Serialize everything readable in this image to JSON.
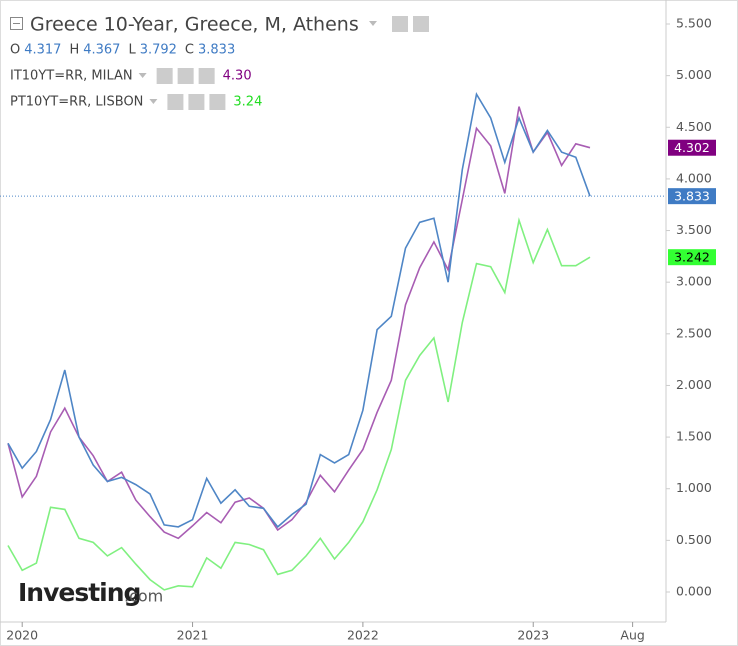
{
  "chart_data": {
    "type": "line",
    "ohlc": [
      {
        "name": "O",
        "value": "4.317"
      },
      {
        "name": "H",
        "value": "4.367"
      },
      {
        "name": "L",
        "value": "3.792"
      },
      {
        "name": "C",
        "value": "3.833"
      }
    ],
    "watermark": {
      "brand": "Investing",
      "suffix": ".com"
    },
    "x": [
      "2019-12",
      "2020-01",
      "2020-02",
      "2020-03",
      "2020-04",
      "2020-05",
      "2020-06",
      "2020-07",
      "2020-08",
      "2020-09",
      "2020-10",
      "2020-11",
      "2020-12",
      "2021-01",
      "2021-02",
      "2021-03",
      "2021-04",
      "2021-05",
      "2021-06",
      "2021-07",
      "2021-08",
      "2021-09",
      "2021-10",
      "2021-11",
      "2021-12",
      "2022-01",
      "2022-02",
      "2022-03",
      "2022-04",
      "2022-05",
      "2022-06",
      "2022-07",
      "2022-08",
      "2022-09",
      "2022-10",
      "2022-11",
      "2022-12",
      "2023-01",
      "2023-02",
      "2023-03",
      "2023-04",
      "2023-05"
    ],
    "xlim": [
      "2019-12",
      "2023-10"
    ],
    "xticks": [
      {
        "value": "2020-01",
        "label": "2020"
      },
      {
        "value": "2021-01",
        "label": "2021"
      },
      {
        "value": "2022-01",
        "label": "2022"
      },
      {
        "value": "2023-01",
        "label": "2023"
      },
      {
        "value": "2023-08",
        "label": "Aug"
      }
    ],
    "ylim": [
      -0.29,
      5.5
    ],
    "yticks": [
      {
        "value": 0,
        "label": "0.000"
      },
      {
        "value": 0.5,
        "label": "0.500"
      },
      {
        "value": 1,
        "label": "1.000"
      },
      {
        "value": 1.5,
        "label": "1.500"
      },
      {
        "value": 2,
        "label": "2.000"
      },
      {
        "value": 2.5,
        "label": "2.500"
      },
      {
        "value": 3,
        "label": "3.000"
      },
      {
        "value": 3.5,
        "label": "3.500"
      },
      {
        "value": 4,
        "label": "4.000"
      },
      {
        "value": 4.5,
        "label": "4.500"
      },
      {
        "value": 5,
        "label": "5.000"
      },
      {
        "value": 5.5,
        "label": "5.500"
      }
    ],
    "grid": false,
    "series": [
      {
        "name": "Greece 10-Year, Greece, M, Athens",
        "color": "#4f86c6",
        "tag_color": "#3f7bc4",
        "tag_text": "#ffffff",
        "last_label": "3.833",
        "values": [
          1.44,
          1.2,
          1.36,
          1.67,
          2.15,
          1.5,
          1.23,
          1.07,
          1.11,
          1.04,
          0.95,
          0.65,
          0.63,
          0.7,
          1.1,
          0.86,
          0.99,
          0.83,
          0.81,
          0.63,
          0.75,
          0.85,
          1.33,
          1.25,
          1.33,
          1.76,
          2.54,
          2.67,
          3.33,
          3.58,
          3.62,
          3.0,
          4.09,
          4.82,
          4.59,
          4.16,
          4.59,
          4.26,
          4.47,
          4.26,
          4.21,
          3.833
        ]
      },
      {
        "name": "IT10YT=RR, MILAN",
        "color": "#a85db3",
        "tag_color": "#800080",
        "tag_text": "#ffffff",
        "last_label": "4.302",
        "legend_value": "4.30",
        "values": [
          1.44,
          0.92,
          1.12,
          1.55,
          1.78,
          1.5,
          1.32,
          1.07,
          1.16,
          0.89,
          0.73,
          0.58,
          0.52,
          0.64,
          0.77,
          0.67,
          0.87,
          0.91,
          0.81,
          0.6,
          0.7,
          0.87,
          1.13,
          0.97,
          1.18,
          1.38,
          1.74,
          2.05,
          2.78,
          3.14,
          3.39,
          3.12,
          3.8,
          4.49,
          4.32,
          3.86,
          4.7,
          4.26,
          4.45,
          4.13,
          4.34,
          4.302
        ]
      },
      {
        "name": "PT10YT=RR, LISBON",
        "color": "#80f080",
        "tag_color": "#33ff33",
        "tag_text": "#000000",
        "last_label": "3.242",
        "legend_value": "3.24",
        "values": [
          0.45,
          0.21,
          0.28,
          0.82,
          0.8,
          0.52,
          0.48,
          0.35,
          0.43,
          0.27,
          0.12,
          0.02,
          0.06,
          0.05,
          0.33,
          0.23,
          0.48,
          0.46,
          0.41,
          0.17,
          0.21,
          0.35,
          0.52,
          0.32,
          0.48,
          0.68,
          0.99,
          1.38,
          2.05,
          2.29,
          2.46,
          1.84,
          2.61,
          3.18,
          3.15,
          2.9,
          3.6,
          3.19,
          3.51,
          3.16,
          3.16,
          3.242
        ]
      }
    ]
  }
}
